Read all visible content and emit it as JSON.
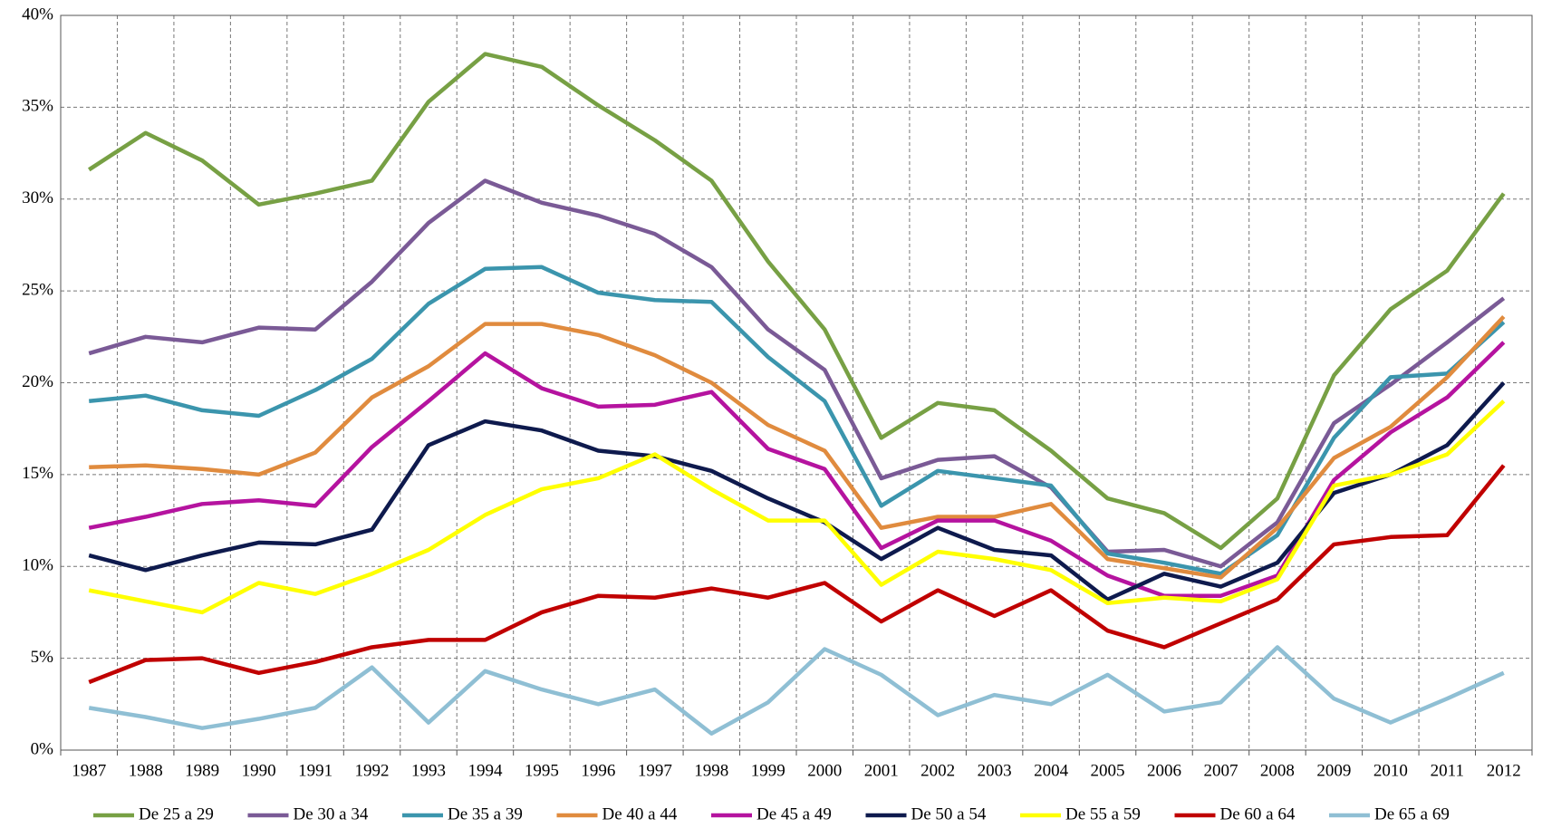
{
  "chart_data": {
    "type": "line",
    "categories": [
      "1987",
      "1988",
      "1989",
      "1990",
      "1991",
      "1992",
      "1993",
      "1994",
      "1995",
      "1996",
      "1997",
      "1998",
      "1999",
      "2000",
      "2001",
      "2002",
      "2003",
      "2004",
      "2005",
      "2006",
      "2007",
      "2008",
      "2009",
      "2010",
      "2011",
      "2012"
    ],
    "series": [
      {
        "name": "De 25 a 29",
        "color": "#77a044",
        "values": [
          31.6,
          33.6,
          32.1,
          29.7,
          30.3,
          31.0,
          35.3,
          37.9,
          37.2,
          35.1,
          33.2,
          31.0,
          26.6,
          22.9,
          17.0,
          18.9,
          18.5,
          16.3,
          13.7,
          12.9,
          11.0,
          13.7,
          20.4,
          24.0,
          26.1,
          30.3
        ]
      },
      {
        "name": "De 30 a 34",
        "color": "#7a5a96",
        "values": [
          21.6,
          22.5,
          22.2,
          23.0,
          22.9,
          25.5,
          28.7,
          31.0,
          29.8,
          29.1,
          28.1,
          26.3,
          22.9,
          20.7,
          14.8,
          15.8,
          16.0,
          14.3,
          10.8,
          10.9,
          10.0,
          12.4,
          17.8,
          19.9,
          22.2,
          24.6
        ]
      },
      {
        "name": "De 35 a 39",
        "color": "#3b95ad",
        "values": [
          19.0,
          19.3,
          18.5,
          18.2,
          19.6,
          21.3,
          24.3,
          26.2,
          26.3,
          24.9,
          24.5,
          24.4,
          21.4,
          19.0,
          13.3,
          15.2,
          14.8,
          14.4,
          10.7,
          10.2,
          9.6,
          11.7,
          17.0,
          20.3,
          20.5,
          23.3
        ]
      },
      {
        "name": "De 40 a 44",
        "color": "#e08b3e",
        "values": [
          15.4,
          15.5,
          15.3,
          15.0,
          16.2,
          19.2,
          20.9,
          23.2,
          23.2,
          22.6,
          21.5,
          20.0,
          17.7,
          16.3,
          12.1,
          12.7,
          12.7,
          13.4,
          10.4,
          9.9,
          9.4,
          12.1,
          15.9,
          17.6,
          20.3,
          23.6
        ]
      },
      {
        "name": "De 45 a 49",
        "color": "#b5139f",
        "values": [
          12.1,
          12.7,
          13.4,
          13.6,
          13.3,
          16.5,
          19.0,
          21.6,
          19.7,
          18.7,
          18.8,
          19.5,
          16.4,
          15.3,
          11.0,
          12.5,
          12.5,
          11.4,
          9.5,
          8.4,
          8.4,
          9.5,
          14.7,
          17.3,
          19.2,
          22.2
        ]
      },
      {
        "name": "De 50 a 54",
        "color": "#0e1a4d",
        "values": [
          10.6,
          9.8,
          10.6,
          11.3,
          11.2,
          12.0,
          16.6,
          17.9,
          17.4,
          16.3,
          16.0,
          15.2,
          13.7,
          12.4,
          10.4,
          12.1,
          10.9,
          10.6,
          8.2,
          9.6,
          8.9,
          10.2,
          14.0,
          15.0,
          16.6,
          20.0
        ]
      },
      {
        "name": "De 55 a 59",
        "color": "#ffff00",
        "values": [
          8.7,
          8.1,
          7.5,
          9.1,
          8.5,
          9.6,
          10.9,
          12.8,
          14.2,
          14.8,
          16.1,
          14.2,
          12.5,
          12.5,
          9.0,
          10.8,
          10.4,
          9.8,
          8.0,
          8.3,
          8.1,
          9.3,
          14.4,
          15.0,
          16.1,
          19.0
        ]
      },
      {
        "name": "De 60 a 64",
        "color": "#c00000",
        "values": [
          3.7,
          4.9,
          5.0,
          4.2,
          4.8,
          5.6,
          6.0,
          6.0,
          7.5,
          8.4,
          8.3,
          8.8,
          8.3,
          9.1,
          7.0,
          8.7,
          7.3,
          8.7,
          6.5,
          5.6,
          6.9,
          8.2,
          11.2,
          11.6,
          11.7,
          15.5
        ]
      },
      {
        "name": "De 65 a 69",
        "color": "#8fbfd4",
        "values": [
          2.3,
          1.8,
          1.2,
          1.7,
          2.3,
          4.5,
          1.5,
          4.3,
          3.3,
          2.5,
          3.3,
          0.9,
          2.6,
          5.5,
          4.1,
          1.9,
          3.0,
          2.5,
          4.1,
          2.1,
          2.6,
          5.6,
          2.8,
          1.5,
          2.8,
          4.2
        ]
      }
    ],
    "ylim": [
      0,
      40
    ],
    "yticks": [
      {
        "value": 0,
        "label": "0%"
      },
      {
        "value": 5,
        "label": "5%"
      },
      {
        "value": 10,
        "label": "10%"
      },
      {
        "value": 15,
        "label": "15%"
      },
      {
        "value": 20,
        "label": "20%"
      },
      {
        "value": 25,
        "label": "25%"
      },
      {
        "value": 30,
        "label": "30%"
      },
      {
        "value": 35,
        "label": "35%"
      },
      {
        "value": 40,
        "label": "40%"
      }
    ],
    "grid": true,
    "legend": "bottom"
  }
}
